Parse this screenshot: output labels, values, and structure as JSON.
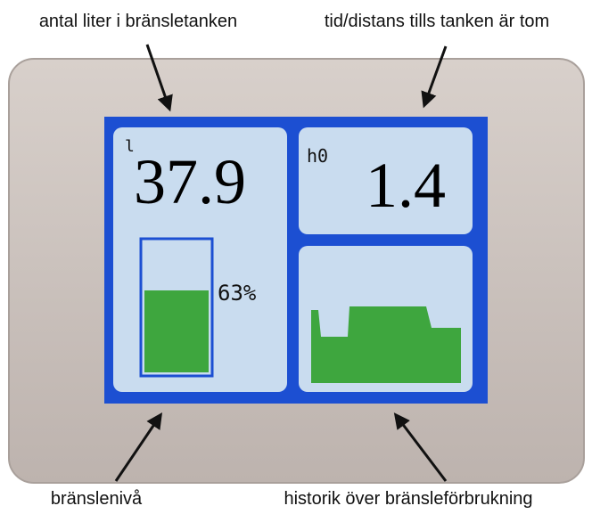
{
  "annotations": {
    "top_left": "antal liter i bränsletanken",
    "top_right": "tid/distans tills tanken är tom",
    "bottom_left": "bränslenivå",
    "bottom_right": "historik över bränsleförbrukning"
  },
  "screen": {
    "volume_unit": "l",
    "volume": "37.9",
    "time_unit": "h0",
    "time": "1.4",
    "gauge": {
      "value": 63,
      "label": "63%"
    }
  }
}
